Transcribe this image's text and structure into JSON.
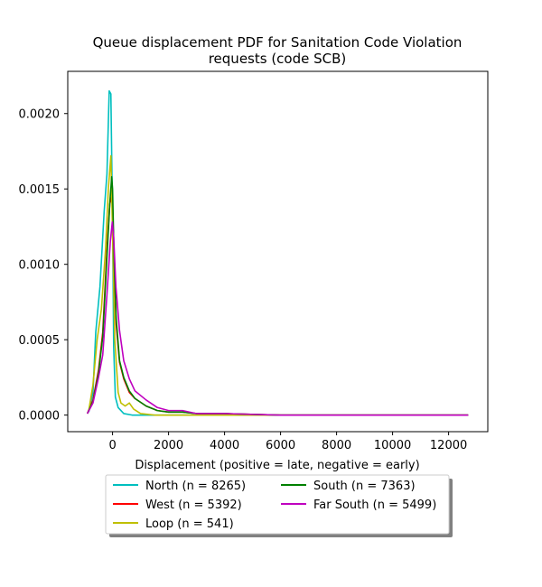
{
  "chart_data": {
    "type": "line",
    "title": "Queue displacement PDF for Sanitation Code Violation requests (code SCB)",
    "title_lines": [
      "Queue displacement PDF for Sanitation Code Violation",
      "requests (code SCB)"
    ],
    "xlabel": "Displacement (positive = late, negative = early)",
    "ylabel": "",
    "xlim": [
      -1600,
      13400
    ],
    "ylim": [
      -0.00011,
      0.00228
    ],
    "xticks": [
      0,
      2000,
      4000,
      6000,
      8000,
      10000,
      12000
    ],
    "yticks": [
      0.0,
      0.0005,
      0.001,
      0.0015,
      0.002
    ],
    "ytick_labels": [
      "0.0000",
      "0.0005",
      "0.0010",
      "0.0015",
      "0.0020"
    ],
    "grid": false,
    "legend": {
      "placement": "below-center",
      "columns": 2,
      "shadow": true
    },
    "series": [
      {
        "name": "North (n = 8265)",
        "color": "#00bfbf",
        "points": [
          [
            -850,
            2e-05
          ],
          [
            -700,
            0.00015
          ],
          [
            -600,
            0.00055
          ],
          [
            -450,
            0.00085
          ],
          [
            -300,
            0.00135
          ],
          [
            -200,
            0.0016
          ],
          [
            -120,
            0.00215
          ],
          [
            -60,
            0.00213
          ],
          [
            0,
            0.0013
          ],
          [
            40,
            0.00045
          ],
          [
            100,
            0.00012
          ],
          [
            200,
            5e-05
          ],
          [
            400,
            1e-05
          ],
          [
            700,
            0.0
          ],
          [
            2000,
            0.0
          ],
          [
            12700,
            0.0
          ]
        ]
      },
      {
        "name": "West (n = 5392)",
        "color": "#ff0000",
        "points": [
          [
            -900,
            1e-05
          ],
          [
            -700,
            0.0001
          ],
          [
            -500,
            0.0003
          ],
          [
            -350,
            0.00055
          ],
          [
            -200,
            0.0011
          ],
          [
            -100,
            0.0014
          ],
          [
            -30,
            0.00145
          ],
          [
            0,
            0.0014
          ],
          [
            60,
            0.00095
          ],
          [
            130,
            0.0006
          ],
          [
            250,
            0.00035
          ],
          [
            400,
            0.00024
          ],
          [
            600,
            0.00015
          ],
          [
            800,
            0.00011
          ],
          [
            1200,
            6e-05
          ],
          [
            1600,
            3e-05
          ],
          [
            2000,
            2e-05
          ],
          [
            2500,
            2e-05
          ],
          [
            3000,
            1e-05
          ],
          [
            4000,
            1e-05
          ],
          [
            6000,
            0.0
          ],
          [
            12700,
            0.0
          ]
        ]
      },
      {
        "name": "Loop (n = 541)",
        "color": "#bfbf00",
        "points": [
          [
            -850,
            3e-05
          ],
          [
            -700,
            0.0002
          ],
          [
            -550,
            0.0005
          ],
          [
            -400,
            0.0007
          ],
          [
            -250,
            0.0011
          ],
          [
            -150,
            0.0015
          ],
          [
            -60,
            0.00172
          ],
          [
            0,
            0.0012
          ],
          [
            80,
            0.0005
          ],
          [
            200,
            0.00015
          ],
          [
            300,
            8e-05
          ],
          [
            450,
            6e-05
          ],
          [
            600,
            8e-05
          ],
          [
            750,
            4e-05
          ],
          [
            1000,
            1e-05
          ],
          [
            1500,
            0.0
          ],
          [
            12700,
            0.0
          ]
        ]
      },
      {
        "name": "South (n = 7363)",
        "color": "#008000",
        "points": [
          [
            -900,
            1e-05
          ],
          [
            -700,
            9e-05
          ],
          [
            -500,
            0.00028
          ],
          [
            -350,
            0.00052
          ],
          [
            -200,
            0.00105
          ],
          [
            -100,
            0.0014
          ],
          [
            -30,
            0.00158
          ],
          [
            0,
            0.0015
          ],
          [
            60,
            0.001
          ],
          [
            130,
            0.00064
          ],
          [
            250,
            0.00036
          ],
          [
            400,
            0.00025
          ],
          [
            600,
            0.00016
          ],
          [
            800,
            0.00011
          ],
          [
            1200,
            6e-05
          ],
          [
            1600,
            3e-05
          ],
          [
            2000,
            2e-05
          ],
          [
            2500,
            2e-05
          ],
          [
            3000,
            1e-05
          ],
          [
            4000,
            1e-05
          ],
          [
            6000,
            0.0
          ],
          [
            12700,
            0.0
          ]
        ]
      },
      {
        "name": "Far South (n = 5499)",
        "color": "#bf00bf",
        "points": [
          [
            -900,
            1e-05
          ],
          [
            -700,
            8e-05
          ],
          [
            -500,
            0.00025
          ],
          [
            -350,
            0.0004
          ],
          [
            -200,
            0.0008
          ],
          [
            -80,
            0.00115
          ],
          [
            -10,
            0.00128
          ],
          [
            40,
            0.00118
          ],
          [
            120,
            0.00085
          ],
          [
            250,
            0.00056
          ],
          [
            400,
            0.00036
          ],
          [
            600,
            0.00024
          ],
          [
            800,
            0.00016
          ],
          [
            1200,
            0.0001
          ],
          [
            1600,
            5e-05
          ],
          [
            2000,
            3e-05
          ],
          [
            2500,
            3e-05
          ],
          [
            3000,
            1e-05
          ],
          [
            4000,
            1e-05
          ],
          [
            6000,
            0.0
          ],
          [
            12700,
            0.0
          ]
        ]
      }
    ]
  }
}
